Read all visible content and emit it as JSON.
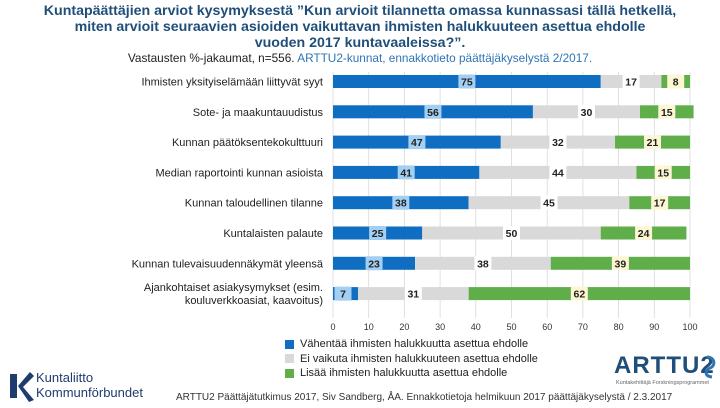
{
  "title_lines": [
    "Kuntapäättäjien arviot kysymyksestä ”Kun arvioit tilannetta omassa kunnassasi tällä hetkellä,",
    "miten arvioit seuraavien asioiden vaikuttavan ihmisten halukkuuteen asettua ehdolle",
    "vuoden 2017 kuntavaaleissa?”."
  ],
  "subtitle": {
    "part1": "Vastausten %-jakaumat, n=556.",
    "part2": "ARTTU2-kunnat, ennakkotieto päättäjäkyselystä 2/2017."
  },
  "chart_data": {
    "type": "bar",
    "orientation": "horizontal",
    "stacked": true,
    "categories": [
      "Ihmisten yksityiselämään liittyvät syyt",
      "Sote- ja maakuntauudistus",
      "Kunnan päätöksentekokulttuuri",
      "Median raportointi kunnan asioista",
      "Kunnan  taloudellinen tilanne",
      "Kuntalaisten palaute",
      "Kunnan tulevaisuudennäkymät yleensä",
      "Ajankohtaiset asiakysymykset (esim.\nkouluverkkoasiat, kaavoitus)"
    ],
    "series": [
      {
        "name": "Vähentää ihmisten halukkuutta asettua ehdolle",
        "color": "#0f6dc2",
        "values": [
          75,
          56,
          47,
          41,
          38,
          25,
          23,
          7
        ]
      },
      {
        "name": "Ei vaikuta ihmisten halukkuuteen asettua ehdolle",
        "color": "#d9d9d9",
        "values": [
          17,
          30,
          32,
          44,
          45,
          50,
          38,
          31
        ]
      },
      {
        "name": "Lisää ihmisten halukkuutta asettua ehdolle",
        "color": "#5fae4a",
        "values": [
          8,
          15,
          21,
          15,
          17,
          24,
          39,
          62
        ]
      }
    ],
    "label_box_colors": [
      "#a3cff3",
      "#ffffff",
      "#fdf6d4"
    ],
    "xlim": [
      0,
      100
    ],
    "xticks": [
      0,
      10,
      20,
      30,
      40,
      50,
      60,
      70,
      80,
      90,
      100
    ],
    "grid": true,
    "legend_position": "bottom"
  },
  "logos": {
    "left_line1": "Kuntaliitto",
    "left_line2": "Kommunförbundet",
    "right_main": "ARTTU2",
    "right_tag": "Kuntakehittäjä Forskningsprogrammet",
    "right_icon": "arttu-swirl-icon",
    "left_icon": "kuntaliitto-k-icon"
  },
  "footer": "ARTTU2 Päättäjätutkimus 2017, Siv Sandberg, ÅA. Ennakkotietoja helmikuun 2017 päättäjäkyselystä / 2.3.2017"
}
